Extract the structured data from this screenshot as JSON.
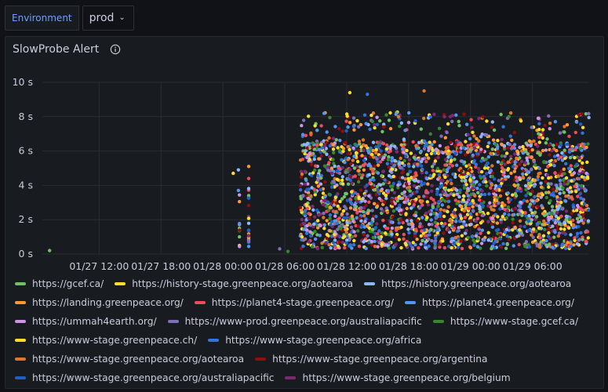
{
  "variables": {
    "environment_label": "Environment",
    "environment_value": "prod"
  },
  "panel": {
    "title": "SlowProbe Alert",
    "info_icon": "info-circle-icon"
  },
  "chart_data": {
    "type": "scatter",
    "title": "SlowProbe Alert",
    "y_ticks": [
      "0 s",
      "2 s",
      "4 s",
      "6 s",
      "8 s",
      "10 s"
    ],
    "ylim": [
      0,
      10
    ],
    "x_ticks": [
      "01/27 12:00",
      "01/27 18:00",
      "01/28 00:00",
      "01/28 06:00",
      "01/28 12:00",
      "01/28 18:00",
      "01/29 00:00",
      "01/29 06:00"
    ],
    "x_tick_hours": [
      12,
      18,
      24,
      30,
      36,
      42,
      48,
      54
    ],
    "xlim_hours": [
      6.5,
      59.5
    ],
    "grid": true,
    "legend_position": "bottom",
    "series": [
      {
        "name": "https://gcef.ca/",
        "color": "#73bf69"
      },
      {
        "name": "https://history-stage.greenpeace.org/aotearoa",
        "color": "#fade2a"
      },
      {
        "name": "https://history.greenpeace.org/aotearoa",
        "color": "#8ab8ff"
      },
      {
        "name": "https://landing.greenpeace.org/",
        "color": "#ff9830"
      },
      {
        "name": "https://planet4-stage.greenpeace.org/",
        "color": "#f2495c"
      },
      {
        "name": "https://planet4.greenpeace.org/",
        "color": "#5794f2"
      },
      {
        "name": "https://ummah4earth.org/",
        "color": "#ca95e5"
      },
      {
        "name": "https://www-prod.greenpeace.org/australiapacific",
        "color": "#806eb7"
      },
      {
        "name": "https://www-stage.gcef.ca/",
        "color": "#37872d"
      },
      {
        "name": "https://www-stage.greenpeace.ch/",
        "color": "#fade2a"
      },
      {
        "name": "https://www-stage.greenpeace.org/africa",
        "color": "#3274d9"
      },
      {
        "name": "https://www-stage.greenpeace.org/aotearoa",
        "color": "#e0752d"
      },
      {
        "name": "https://www-stage.greenpeace.org/argentina",
        "color": "#8f0e0e"
      },
      {
        "name": "https://www-stage.greenpeace.org/australiapacific",
        "color": "#1f60c4"
      },
      {
        "name": "https://www-stage.greenpeace.org/belgium",
        "color": "#7c2a6e"
      }
    ],
    "sample_points": [
      {
        "x_hours": 7.2,
        "y": 0.2
      },
      {
        "x_hours": 25.0,
        "y": 4.7
      },
      {
        "x_hours": 25.5,
        "y": 4.9
      },
      {
        "x_hours": 26.5,
        "y": 5.1
      },
      {
        "x_hours": 26.5,
        "y": 4.4
      },
      {
        "x_hours": 25.5,
        "y": 3.7
      },
      {
        "x_hours": 26.5,
        "y": 0.8
      },
      {
        "x_hours": 29.5,
        "y": 0.3
      },
      {
        "x_hours": 30.3,
        "y": 0.15
      },
      {
        "x_hours": 36.3,
        "y": 9.4
      },
      {
        "x_hours": 38.0,
        "y": 9.3
      },
      {
        "x_hours": 43.5,
        "y": 9.5
      },
      {
        "x_hours": 58.5,
        "y": 8.1
      }
    ],
    "dense_region": {
      "x_start_hours": 31.5,
      "x_end_hours": 59.5,
      "y_min": 0.3,
      "y_max": 6.5
    }
  },
  "legend_rows": [
    [
      0,
      1,
      2
    ],
    [
      3,
      4,
      5
    ],
    [
      6,
      7,
      8
    ],
    [
      9,
      10
    ],
    [
      11,
      12
    ],
    [
      13,
      14
    ]
  ]
}
